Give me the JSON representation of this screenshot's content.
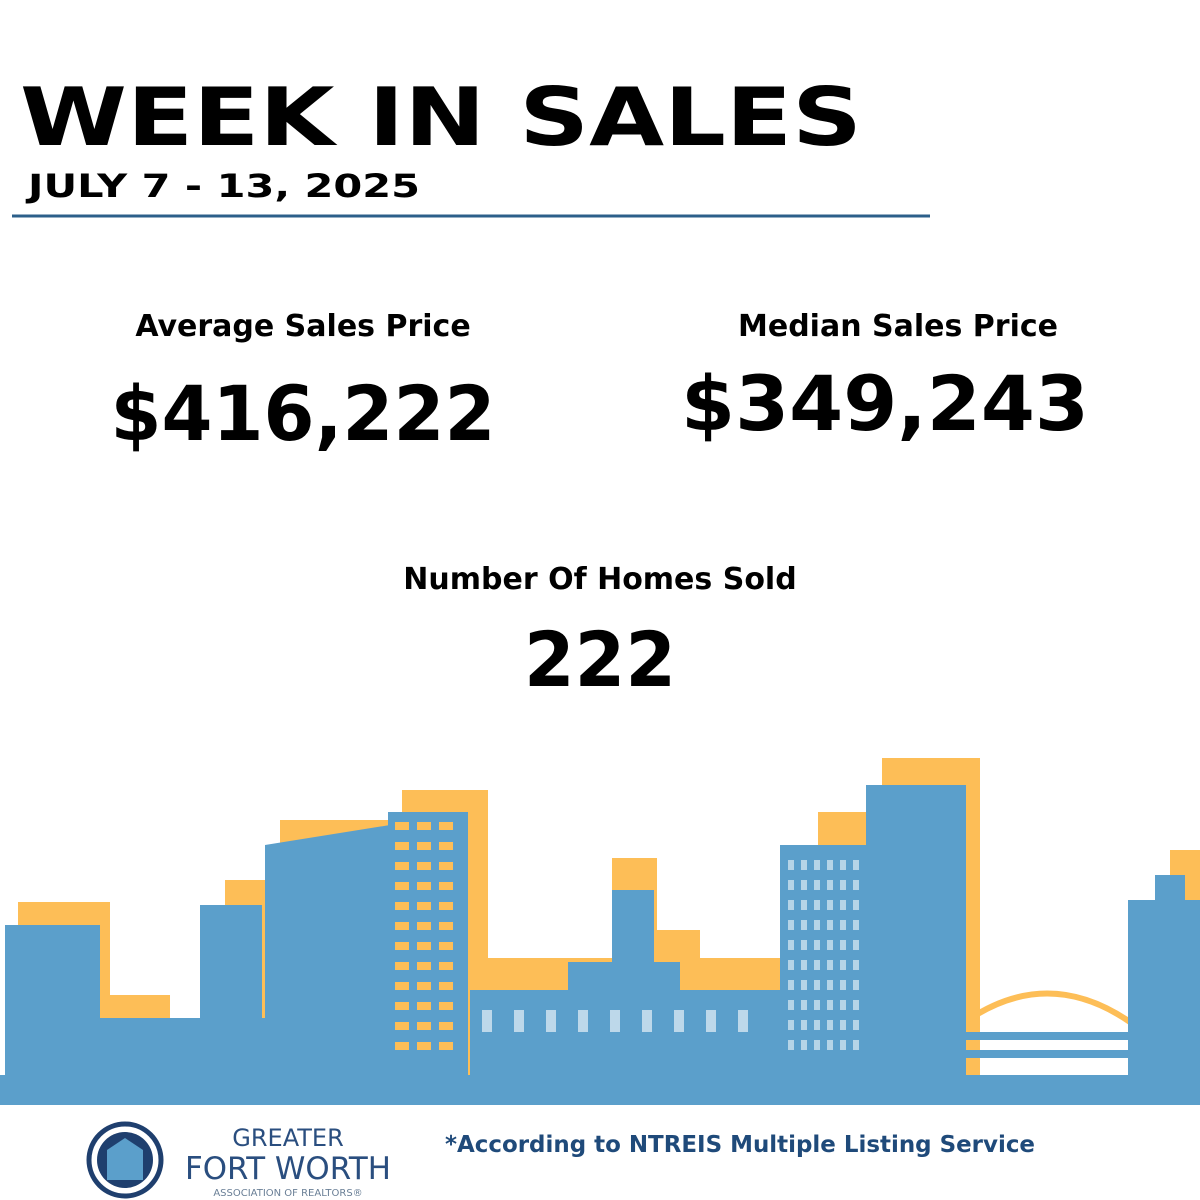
{
  "header": {
    "title": "WEEK IN SALES",
    "date": "JULY 7 - 13, 2025"
  },
  "stats": [
    {
      "label": "Average Sales Price",
      "value": "$416,222"
    },
    {
      "label": "Median Sales Price",
      "value": "$349,243"
    },
    {
      "label": "Number Of Homes Sold",
      "value": "222"
    }
  ],
  "footer": {
    "logo": {
      "line1": "GREATER",
      "line2": "FORT WORTH",
      "line3": "ASSOCIATION OF REALTORS®"
    },
    "note": "*According to NTREIS Multiple Listing Service"
  }
}
